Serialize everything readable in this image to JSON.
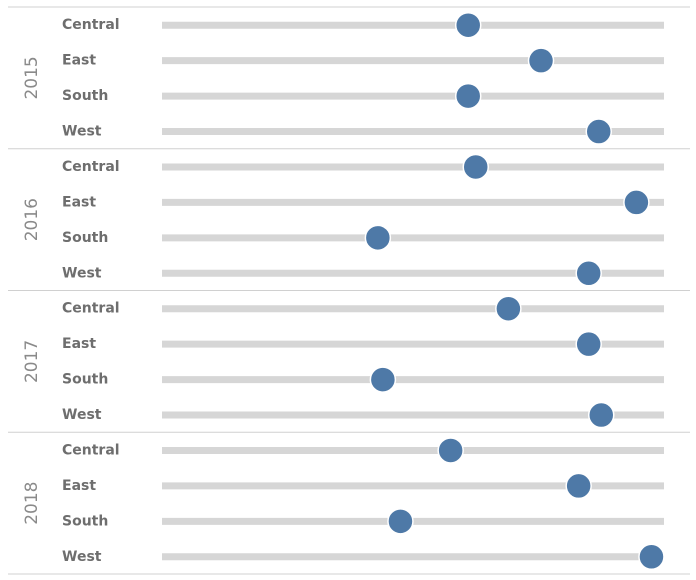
{
  "chart_data": {
    "type": "scatter",
    "orientation": "horizontal-dot-plot",
    "title": "",
    "xlabel": "",
    "ylabel": "",
    "xlim": [
      0,
      100
    ],
    "color": "#4e79a7",
    "track_color": "#d6d6d6",
    "grid": false,
    "legend": "none",
    "groups": [
      {
        "year": "2015",
        "regions": [
          {
            "name": "Central",
            "value": 61
          },
          {
            "name": "East",
            "value": 75.5
          },
          {
            "name": "South",
            "value": 61
          },
          {
            "name": "West",
            "value": 87
          }
        ]
      },
      {
        "year": "2016",
        "regions": [
          {
            "name": "Central",
            "value": 62.5
          },
          {
            "name": "East",
            "value": 94.5
          },
          {
            "name": "South",
            "value": 43
          },
          {
            "name": "West",
            "value": 85
          }
        ]
      },
      {
        "year": "2017",
        "regions": [
          {
            "name": "Central",
            "value": 69
          },
          {
            "name": "East",
            "value": 85
          },
          {
            "name": "South",
            "value": 44
          },
          {
            "name": "West",
            "value": 87.5
          }
        ]
      },
      {
        "year": "2018",
        "regions": [
          {
            "name": "Central",
            "value": 57.5
          },
          {
            "name": "East",
            "value": 83
          },
          {
            "name": "South",
            "value": 47.5
          },
          {
            "name": "West",
            "value": 97.5
          }
        ]
      }
    ]
  }
}
